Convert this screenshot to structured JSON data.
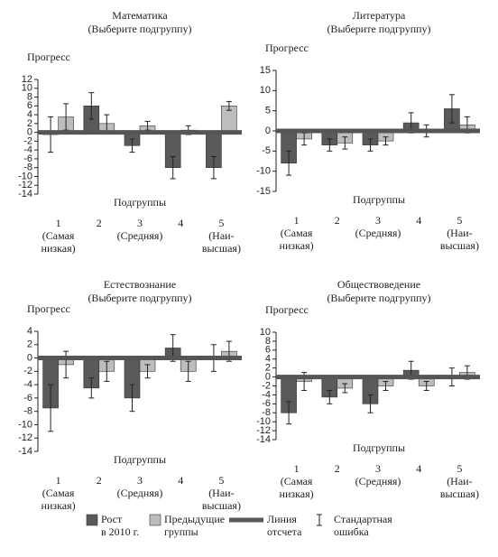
{
  "chart_data": [
    {
      "type": "bar",
      "title": "Математика",
      "subtitle": "(Выберите подгруппу)",
      "ylabel": "Прогресс",
      "xlabel": "Подгруппы",
      "categories": [
        "1\n(Самая\nнизкая)",
        "2",
        "3\n(Средняя)",
        "4",
        "5\n(Наи-\nвысшая)"
      ],
      "series": [
        {
          "color": "#5a5a5a",
          "values": [
            -0.5,
            6,
            -3,
            -8,
            -8
          ],
          "errors": [
            4,
            3,
            1.5,
            2.5,
            2.5
          ]
        },
        {
          "color": "#bdbdbd",
          "values": [
            3.5,
            2,
            1.5,
            0.5,
            6
          ],
          "errors": [
            3,
            2,
            1,
            1,
            1
          ]
        }
      ],
      "ylim": [
        -14,
        12
      ],
      "yticks": [
        -14,
        -12,
        -10,
        -8,
        -6,
        -4,
        -2,
        0,
        2,
        4,
        6,
        8,
        10,
        12
      ]
    },
    {
      "type": "bar",
      "title": "Литература",
      "subtitle": "(Выберите подгруппу)",
      "ylabel": "Прогресс",
      "xlabel": "Подгруппы",
      "categories": [
        "1\n(Самая\nнизкая)",
        "2",
        "3\n(Средняя)",
        "4",
        "5\n(Наи-\nвысшая)"
      ],
      "series": [
        {
          "color": "#5a5a5a",
          "values": [
            -8,
            -3.5,
            -3.5,
            2,
            5.5
          ],
          "errors": [
            3,
            1.5,
            1.5,
            2.5,
            3.5
          ]
        },
        {
          "color": "#bdbdbd",
          "values": [
            -2,
            -3,
            -2.5,
            0,
            1.5
          ],
          "errors": [
            1.5,
            1.5,
            1,
            1.5,
            2
          ]
        }
      ],
      "ylim": [
        -15,
        15
      ],
      "yticks": [
        -15,
        -10,
        -5,
        0,
        5,
        10,
        15
      ]
    },
    {
      "type": "bar",
      "title": "Естествознание",
      "subtitle": "(Выберите подгруппу)",
      "ylabel": "Прогресс",
      "xlabel": "Подгруппы",
      "categories": [
        "1\n(Самая\nнизкая)",
        "2",
        "3\n(Средняя)",
        "4",
        "5\n(Наи-\nвысшая)"
      ],
      "series": [
        {
          "color": "#5a5a5a",
          "values": [
            -7.5,
            -4.5,
            -6,
            1.5,
            0
          ],
          "errors": [
            3.5,
            1.5,
            2,
            2,
            2
          ]
        },
        {
          "color": "#bdbdbd",
          "values": [
            -1,
            -2,
            -2,
            -2,
            1
          ],
          "errors": [
            2,
            1.5,
            1,
            1.5,
            1.5
          ]
        }
      ],
      "ylim": [
        -14,
        4
      ],
      "yticks": [
        -14,
        -12,
        -10,
        -8,
        -6,
        -4,
        -2,
        0,
        2,
        4
      ]
    },
    {
      "type": "bar",
      "title": "Обществоведение",
      "subtitle": "(Выберите подгруппу)",
      "ylabel": "Прогресс",
      "xlabel": "Подгруппы",
      "categories": [
        "1\n(Самая\nнизкая)",
        "2",
        "3\n(Средняя)",
        "4",
        "5\n(Наи-\nвысшая)"
      ],
      "series": [
        {
          "color": "#5a5a5a",
          "values": [
            -8,
            -4.5,
            -6,
            1.5,
            0
          ],
          "errors": [
            2.5,
            1.5,
            2,
            2,
            2
          ]
        },
        {
          "color": "#bdbdbd",
          "values": [
            -1,
            -2.5,
            -2,
            -2,
            1
          ],
          "errors": [
            2,
            1,
            1,
            1,
            1.5
          ]
        }
      ],
      "ylim": [
        -14,
        10
      ],
      "yticks": [
        -14,
        -12,
        -10,
        -8,
        -6,
        -4,
        -2,
        0,
        2,
        4,
        6,
        8,
        10
      ]
    }
  ],
  "legend": {
    "items": [
      {
        "label": "Рост\nв 2010 г.",
        "kind": "box",
        "color": "#5a5a5a"
      },
      {
        "label": "Предыдущие\nгруппы",
        "kind": "box",
        "color": "#bdbdbd"
      },
      {
        "label": "Линия\nотсчета",
        "kind": "line",
        "color": "#5a5a5a"
      },
      {
        "label": "Стандартная\nошибка",
        "kind": "error",
        "color": "#222"
      }
    ]
  }
}
